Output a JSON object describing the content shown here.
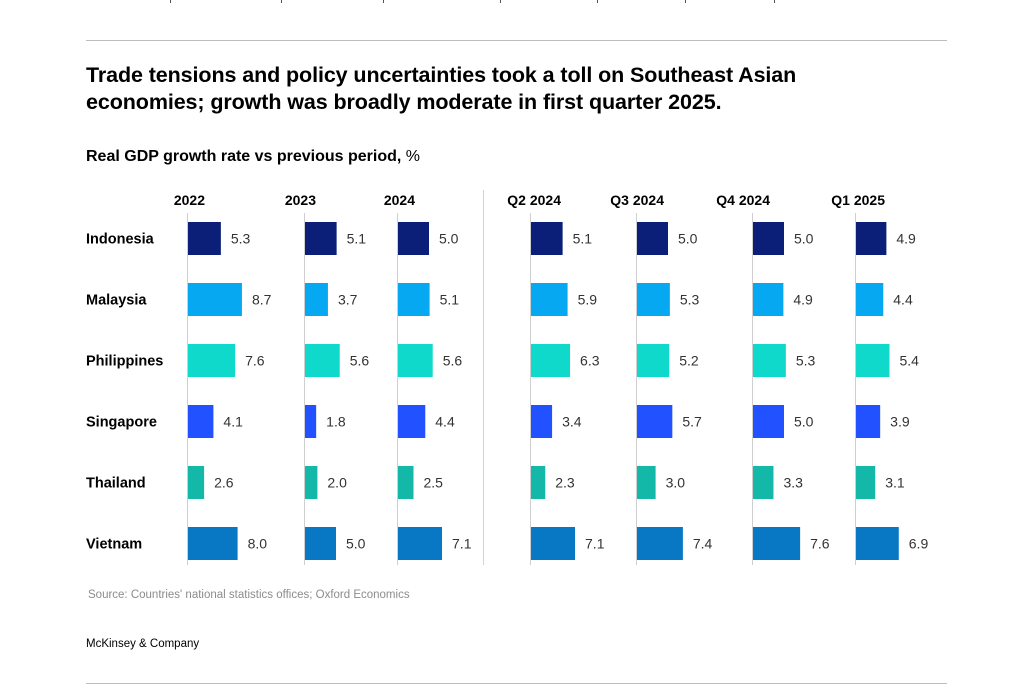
{
  "header": {
    "title": "Trade tensions and policy uncertainties took a toll on Southeast Asian economies; growth was broadly moderate in first quarter 2025.",
    "subtitle": "Real GDP growth rate vs previous period,",
    "subtitle_unit": "%"
  },
  "footer": {
    "source": "Source: Countries' national statistics offices; Oxford Economics",
    "brand": "McKinsey & Company"
  },
  "chart_data": {
    "type": "bar",
    "orientation": "horizontal",
    "title": "Real GDP growth rate vs previous period, %",
    "xlabel": "",
    "ylabel": "",
    "grid": false,
    "legend": "none",
    "categories": [
      "Indonesia",
      "Malaysia",
      "Philippines",
      "Singapore",
      "Thailand",
      "Vietnam"
    ],
    "category_colors": [
      "#0b1f78",
      "#06a9f1",
      "#0fd9cb",
      "#2251ff",
      "#14b8a9",
      "#0877c4"
    ],
    "panels": [
      {
        "name": "2022",
        "group": "annual",
        "values": [
          5.3,
          8.7,
          7.6,
          4.1,
          2.6,
          8.0
        ]
      },
      {
        "name": "2023",
        "group": "annual",
        "values": [
          5.1,
          3.7,
          5.6,
          1.8,
          2.0,
          5.0
        ]
      },
      {
        "name": "2024",
        "group": "annual",
        "values": [
          5.0,
          5.1,
          5.6,
          4.4,
          2.5,
          7.1
        ]
      },
      {
        "name": "Q2 2024",
        "group": "quarterly",
        "values": [
          5.1,
          5.9,
          6.3,
          3.4,
          2.3,
          7.1
        ]
      },
      {
        "name": "Q3 2024",
        "group": "quarterly",
        "values": [
          5.0,
          5.3,
          5.2,
          5.7,
          3.0,
          7.4
        ]
      },
      {
        "name": "Q4 2024",
        "group": "quarterly",
        "values": [
          5.0,
          4.9,
          5.3,
          5.0,
          3.3,
          7.6
        ]
      },
      {
        "name": "Q1 2025",
        "group": "quarterly",
        "values": [
          4.9,
          4.4,
          5.4,
          3.9,
          3.1,
          6.9
        ]
      }
    ]
  }
}
